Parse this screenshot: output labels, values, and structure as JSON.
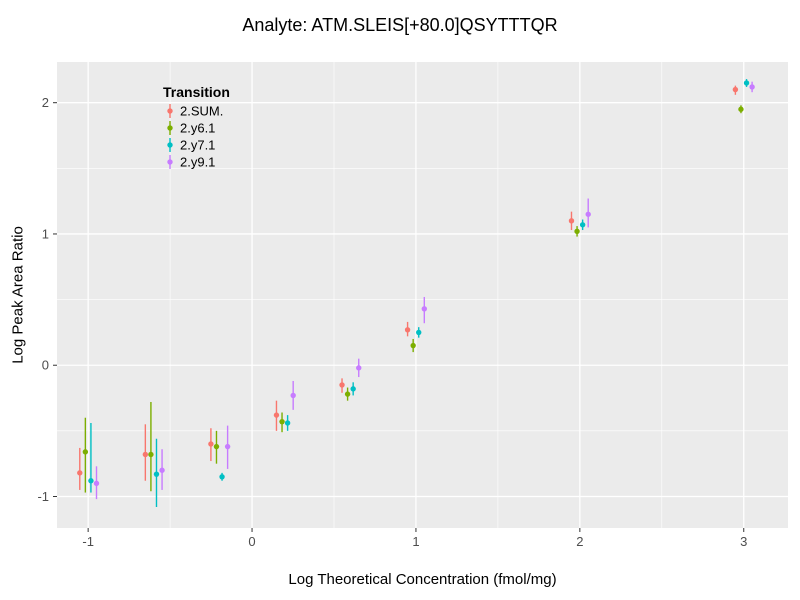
{
  "figure": {
    "background": "#FFFFFF"
  },
  "chart_data": {
    "type": "scatter",
    "marker": "pointrange",
    "title": "Analyte: ATM.SLEIS[+80.0]QSYTTTQR",
    "xlabel": "Log Theoretical Concentration (fmol/mg)",
    "ylabel": "Log Peak Area Ratio",
    "legend_title": "Transition",
    "legend_position": "inside-top-left",
    "panel_background": "#EBEBEB",
    "grid_color": "#FFFFFF",
    "tick_label_color": "#4D4D4D",
    "grid": true,
    "xlim": [
      -1.19,
      3.27
    ],
    "ylim": [
      -1.24,
      2.31
    ],
    "xticks": [
      -1,
      0,
      1,
      2,
      3
    ],
    "xtick_labels": [
      "-1",
      "0",
      "1",
      "2",
      "3"
    ],
    "yticks": [
      -1,
      0,
      1,
      2
    ],
    "ytick_labels": [
      "-1",
      "0",
      "1",
      "2"
    ],
    "x_minor_ticks": [
      -0.5,
      0.5,
      1.5,
      2.5
    ],
    "y_minor_ticks": [
      -0.5,
      0.5,
      1.5
    ],
    "series": [
      {
        "name": "2.SUM.",
        "color": "#F8766D",
        "points": [
          {
            "x": -1.0,
            "y": -0.82,
            "ymin": -0.95,
            "ymax": -0.63
          },
          {
            "x": -0.6,
            "y": -0.68,
            "ymin": -0.88,
            "ymax": -0.45
          },
          {
            "x": -0.2,
            "y": -0.6,
            "ymin": -0.73,
            "ymax": -0.48
          },
          {
            "x": 0.2,
            "y": -0.38,
            "ymin": -0.5,
            "ymax": -0.27
          },
          {
            "x": 0.6,
            "y": -0.15,
            "ymin": -0.21,
            "ymax": -0.1
          },
          {
            "x": 1.0,
            "y": 0.27,
            "ymin": 0.22,
            "ymax": 0.33
          },
          {
            "x": 2.0,
            "y": 1.1,
            "ymin": 1.03,
            "ymax": 1.17
          },
          {
            "x": 3.0,
            "y": 2.1,
            "ymin": 2.06,
            "ymax": 2.13
          }
        ]
      },
      {
        "name": "2.y6.1",
        "color": "#7CAE00",
        "points": [
          {
            "x": -1.0,
            "y": -0.66,
            "ymin": -0.97,
            "ymax": -0.4
          },
          {
            "x": -0.6,
            "y": -0.68,
            "ymin": -0.96,
            "ymax": -0.28
          },
          {
            "x": -0.2,
            "y": -0.62,
            "ymin": -0.75,
            "ymax": -0.5
          },
          {
            "x": 0.2,
            "y": -0.43,
            "ymin": -0.51,
            "ymax": -0.36
          },
          {
            "x": 0.6,
            "y": -0.22,
            "ymin": -0.27,
            "ymax": -0.17
          },
          {
            "x": 1.0,
            "y": 0.15,
            "ymin": 0.1,
            "ymax": 0.2
          },
          {
            "x": 2.0,
            "y": 1.02,
            "ymin": 0.98,
            "ymax": 1.06
          },
          {
            "x": 3.0,
            "y": 1.95,
            "ymin": 1.92,
            "ymax": 1.98
          }
        ]
      },
      {
        "name": "2.y7.1",
        "color": "#00BFC4",
        "points": [
          {
            "x": -1.0,
            "y": -0.88,
            "ymin": -0.97,
            "ymax": -0.44
          },
          {
            "x": -0.6,
            "y": -0.83,
            "ymin": -1.08,
            "ymax": -0.56
          },
          {
            "x": -0.2,
            "y": -0.85,
            "ymin": -0.88,
            "ymax": -0.82
          },
          {
            "x": 0.2,
            "y": -0.44,
            "ymin": -0.5,
            "ymax": -0.38
          },
          {
            "x": 0.6,
            "y": -0.18,
            "ymin": -0.23,
            "ymax": -0.13
          },
          {
            "x": 1.0,
            "y": 0.25,
            "ymin": 0.21,
            "ymax": 0.29
          },
          {
            "x": 2.0,
            "y": 1.07,
            "ymin": 1.03,
            "ymax": 1.11
          },
          {
            "x": 3.0,
            "y": 2.15,
            "ymin": 2.12,
            "ymax": 2.18
          }
        ]
      },
      {
        "name": "2.y9.1",
        "color": "#C77CFF",
        "points": [
          {
            "x": -1.0,
            "y": -0.9,
            "ymin": -1.02,
            "ymax": -0.77
          },
          {
            "x": -0.6,
            "y": -0.8,
            "ymin": -0.95,
            "ymax": -0.64
          },
          {
            "x": -0.2,
            "y": -0.62,
            "ymin": -0.79,
            "ymax": -0.46
          },
          {
            "x": 0.2,
            "y": -0.23,
            "ymin": -0.34,
            "ymax": -0.12
          },
          {
            "x": 0.6,
            "y": -0.02,
            "ymin": -0.09,
            "ymax": 0.05
          },
          {
            "x": 1.0,
            "y": 0.43,
            "ymin": 0.32,
            "ymax": 0.52
          },
          {
            "x": 2.0,
            "y": 1.15,
            "ymin": 1.05,
            "ymax": 1.27
          },
          {
            "x": 3.0,
            "y": 2.12,
            "ymin": 2.08,
            "ymax": 2.16
          }
        ]
      }
    ]
  }
}
